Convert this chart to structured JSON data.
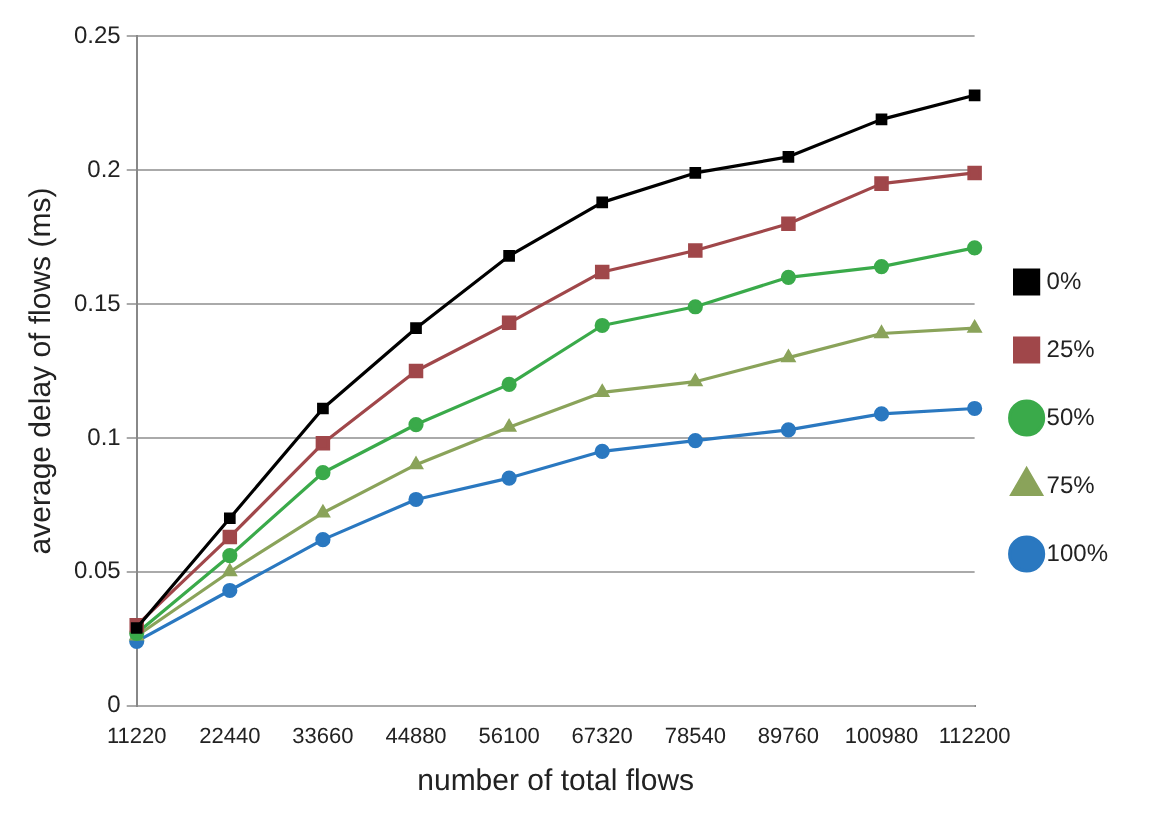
{
  "chart_data": {
    "type": "line",
    "xlabel": "number of total flows",
    "ylabel": "average delay of flows (ms)",
    "categories": [
      "11220",
      "22440",
      "33660",
      "44880",
      "56100",
      "67320",
      "78540",
      "89760",
      "100980",
      "112200"
    ],
    "ylim": [
      0,
      0.25
    ],
    "yticks": [
      0,
      0.05,
      0.1,
      0.15,
      0.2,
      0.25
    ],
    "grid": "y",
    "legend": "right",
    "series": [
      {
        "name": "0%",
        "color": "#000000",
        "marker": "square",
        "values": [
          0.029,
          0.07,
          0.111,
          0.141,
          0.168,
          0.188,
          0.199,
          0.205,
          0.219,
          0.228
        ]
      },
      {
        "name": "25%",
        "color": "#a0474a",
        "marker": "square",
        "values": [
          0.03,
          0.063,
          0.098,
          0.125,
          0.143,
          0.162,
          0.17,
          0.18,
          0.195,
          0.199
        ]
      },
      {
        "name": "50%",
        "color": "#3aaa4a",
        "marker": "circle",
        "values": [
          0.027,
          0.056,
          0.087,
          0.105,
          0.12,
          0.142,
          0.149,
          0.16,
          0.164,
          0.171
        ]
      },
      {
        "name": "75%",
        "color": "#8aa35a",
        "marker": "triangle",
        "values": [
          0.026,
          0.05,
          0.072,
          0.09,
          0.104,
          0.117,
          0.121,
          0.13,
          0.139,
          0.141
        ]
      },
      {
        "name": "100%",
        "color": "#2a78c0",
        "marker": "circle",
        "values": [
          0.024,
          0.043,
          0.062,
          0.077,
          0.085,
          0.095,
          0.099,
          0.103,
          0.109,
          0.111
        ]
      }
    ]
  }
}
